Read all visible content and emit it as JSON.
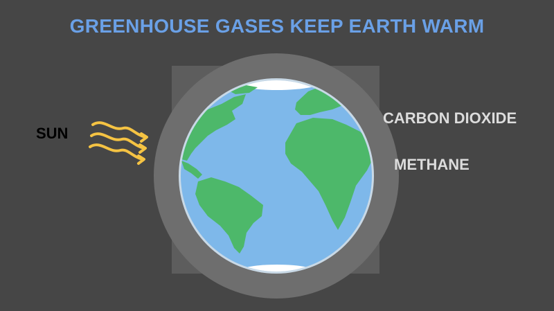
{
  "title": "GREENHOUSE GASES KEEP EARTH WARM",
  "labels": {
    "sun": "SUN",
    "carbon_dioxide": "CARBON DIOXIDE",
    "methane": "METHANE"
  },
  "colors": {
    "background": "#464646",
    "title": "#6aa0e6",
    "sun_arrows": "#f5c343",
    "atmosphere_outer": "#5d5d5d",
    "atmosphere_ring": "#6e6e6e",
    "ocean": "#7eb8ea",
    "land": "#4db86a",
    "ice": "#ffffff",
    "gas_labels": "#dcdcdc"
  },
  "icons": [
    "sun-ray-arrows",
    "earth-globe",
    "atmosphere-ring"
  ]
}
